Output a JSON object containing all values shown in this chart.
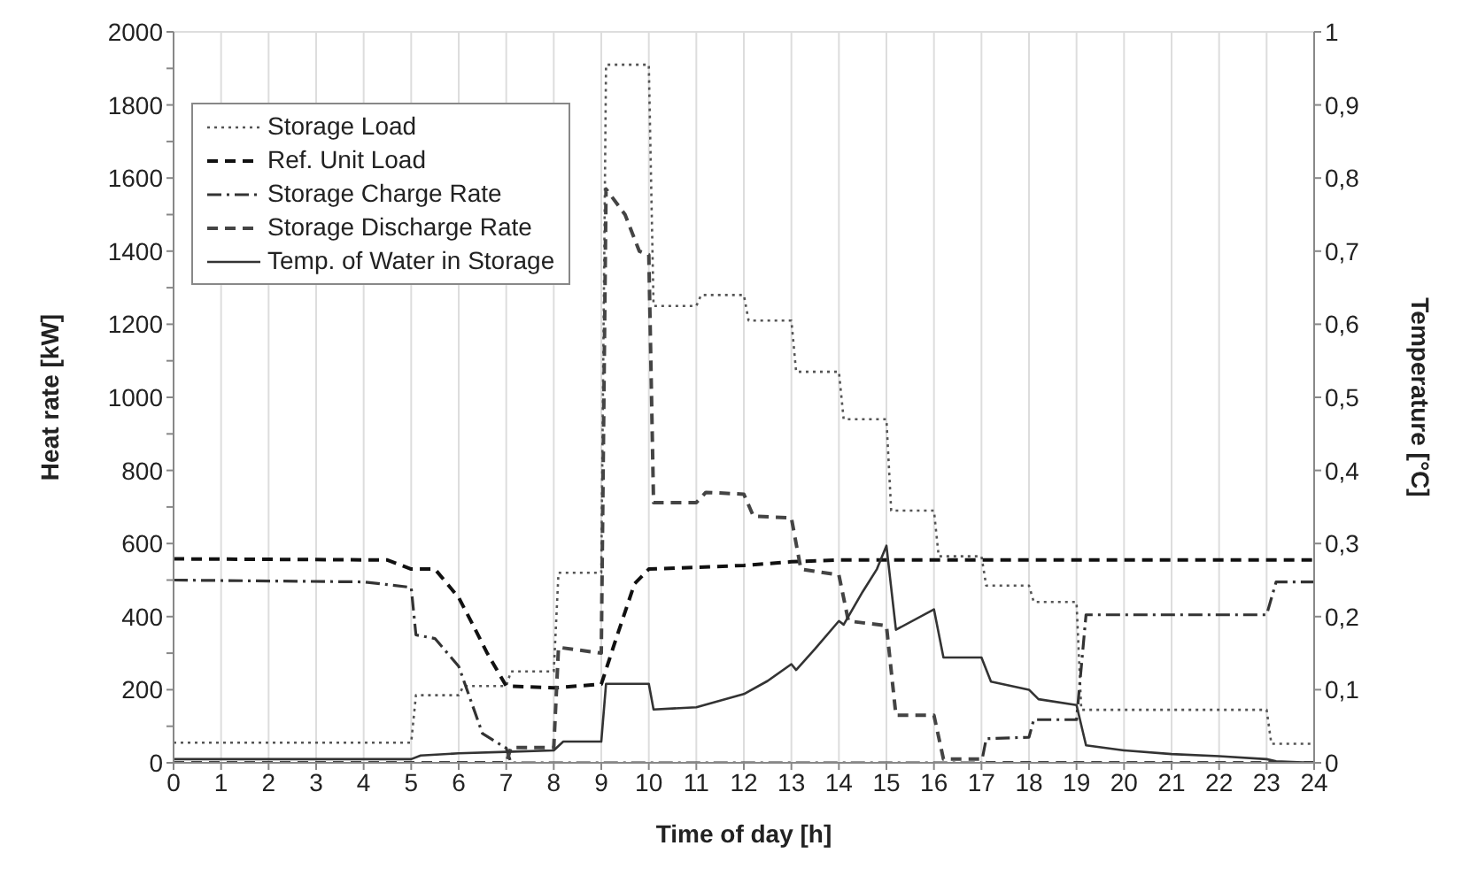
{
  "chart_data": {
    "type": "line",
    "xlabel": "Time of day [h]",
    "ylabel": "Heat rate [kW]",
    "y2label": "Temperature [°C]",
    "xlim": [
      0,
      24
    ],
    "xticks": [
      0,
      1,
      2,
      3,
      4,
      5,
      6,
      7,
      8,
      9,
      10,
      11,
      12,
      13,
      14,
      15,
      16,
      17,
      18,
      19,
      20,
      21,
      22,
      23,
      24
    ],
    "ylim": [
      0,
      2000
    ],
    "yticks": [
      0,
      {
        "value": 100,
        "label": null
      },
      200,
      {
        "value": 300,
        "label": null
      },
      400,
      {
        "value": 500,
        "label": null
      },
      600,
      {
        "value": 700,
        "label": null
      },
      800,
      {
        "value": 900,
        "label": null
      },
      1000,
      {
        "value": 1100,
        "label": null
      },
      1200,
      {
        "value": 1300,
        "label": null
      },
      1400,
      {
        "value": 1500,
        "label": null
      },
      1600,
      {
        "value": 1700,
        "label": null
      },
      1800,
      {
        "value": 1900,
        "label": null
      },
      2000
    ],
    "y2lim": [
      0,
      1
    ],
    "y2ticks": [
      0,
      {
        "value": 0.1,
        "label": "0,1"
      },
      {
        "value": 0.2,
        "label": "0,2"
      },
      {
        "value": 0.3,
        "label": "0,3"
      },
      {
        "value": 0.4,
        "label": "0,4"
      },
      {
        "value": 0.5,
        "label": "0,5"
      },
      {
        "value": 0.6,
        "label": "0,6"
      },
      {
        "value": 0.7,
        "label": "0,7"
      },
      {
        "value": 0.8,
        "label": "0,8"
      },
      {
        "value": 0.9,
        "label": "0,9"
      },
      1
    ],
    "grid": true,
    "legend": "top left",
    "marker": "none",
    "series": [
      {
        "name": "Storage Load",
        "color": "#555555",
        "line_style": "dotted",
        "x": [
          0,
          5,
          5.1,
          6,
          6.1,
          7,
          7.1,
          8,
          8.1,
          9,
          9.1,
          10,
          10.1,
          11,
          11.1,
          12,
          12.1,
          13,
          13.1,
          14,
          14.1,
          15,
          15.1,
          16,
          16.1,
          17,
          17.1,
          18,
          18.1,
          19,
          19.1,
          23,
          23.1,
          24
        ],
        "values": [
          55,
          55,
          185,
          185,
          210,
          210,
          250,
          250,
          520,
          520,
          1910,
          1910,
          1250,
          1250,
          1280,
          1280,
          1210,
          1210,
          1070,
          1070,
          940,
          940,
          690,
          690,
          565,
          565,
          485,
          485,
          440,
          440,
          145,
          145,
          52,
          52
        ]
      },
      {
        "name": "Ref. Unit Load",
        "color": "#111111",
        "line_style": "dashed",
        "x": [
          0,
          4.5,
          5,
          5.5,
          6,
          6.3,
          6.6,
          7,
          8,
          9,
          9.3,
          9.7,
          10,
          11,
          12,
          13,
          14,
          24
        ],
        "values": [
          558,
          555,
          530,
          530,
          452,
          377,
          300,
          210,
          205,
          215,
          335,
          490,
          530,
          535,
          540,
          550,
          555,
          555
        ]
      },
      {
        "name": "Storage Charge Rate",
        "color": "#333333",
        "line_style": "dashdot",
        "x": [
          0,
          4,
          5,
          5.1,
          5.5,
          6,
          6.5,
          7,
          7.1,
          17,
          17.1,
          18,
          18.1,
          19,
          19.2,
          23,
          23.2,
          24
        ],
        "values": [
          500,
          495,
          480,
          350,
          340,
          264,
          80,
          40,
          0,
          0,
          66,
          70,
          118,
          118,
          405,
          405,
          495,
          495
        ]
      },
      {
        "name": "Storage Discharge Rate",
        "color": "#444444",
        "line_style": "dashed",
        "x": [
          0,
          7,
          7.1,
          8,
          8.1,
          9,
          9.1,
          9.5,
          9.8,
          10,
          10.1,
          11,
          11.2,
          12,
          12.2,
          13,
          13.2,
          14,
          14.2,
          15,
          15.2,
          16,
          16.2,
          17,
          17.1,
          24
        ],
        "values": [
          0,
          0,
          42,
          42,
          316,
          300,
          1570,
          1500,
          1400,
          1390,
          712,
          712,
          740,
          735,
          675,
          670,
          530,
          514,
          388,
          375,
          130,
          130,
          10,
          10,
          0,
          0
        ]
      },
      {
        "name": "Temp. of Water in Storage",
        "color": "#333333",
        "line_style": "solid",
        "axis": "y2",
        "x": [
          0,
          5,
          5.2,
          6,
          7,
          8,
          8.2,
          9,
          9.1,
          10,
          10.1,
          11,
          12,
          12.5,
          13,
          13.1,
          13.5,
          14,
          14.1,
          14.5,
          14.8,
          15,
          15.2,
          16,
          16.2,
          17,
          17.2,
          18,
          18.2,
          19,
          19.2,
          20,
          21,
          22,
          23,
          23.2,
          24
        ],
        "values": [
          0.005,
          0.005,
          0.01,
          0.013,
          0.015,
          0.017,
          0.029,
          0.029,
          0.108,
          0.108,
          0.073,
          0.076,
          0.094,
          0.112,
          0.135,
          0.127,
          0.156,
          0.194,
          0.189,
          0.234,
          0.265,
          0.297,
          0.182,
          0.21,
          0.144,
          0.144,
          0.111,
          0.1,
          0.087,
          0.079,
          0.024,
          0.017,
          0.012,
          0.009,
          0.005,
          0.002,
          0
        ]
      }
    ]
  }
}
